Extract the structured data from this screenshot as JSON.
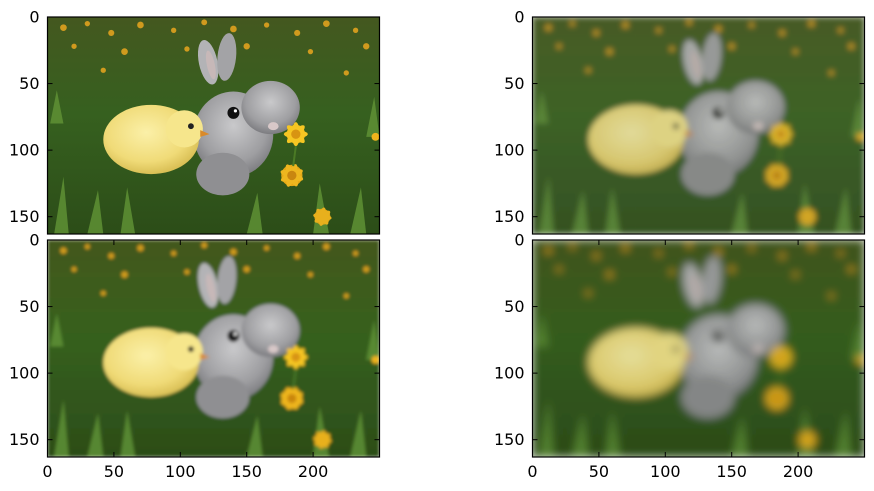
{
  "chart_data": [
    {
      "type": "image",
      "position": "top-left",
      "image_subject": "yellow chick and grey rabbit in grass with yellow dandelions",
      "xlim": [
        0,
        250
      ],
      "ylim": [
        163,
        0
      ],
      "xticks": [],
      "yticks": [
        0,
        50,
        100,
        150
      ],
      "ytick_labels": [
        "0",
        "50",
        "100",
        "150"
      ]
    },
    {
      "type": "image",
      "position": "top-right",
      "image_subject": "yellow chick and grey rabbit in grass with yellow dandelions, smoothed",
      "xlim": [
        0,
        250
      ],
      "ylim": [
        163,
        0
      ],
      "xticks": [],
      "yticks": [
        0,
        50,
        100,
        150
      ],
      "ytick_labels": [
        "0",
        "50",
        "100",
        "150"
      ]
    },
    {
      "type": "image",
      "position": "bottom-left",
      "image_subject": "yellow chick and grey rabbit in grass with yellow dandelions, smoothed",
      "xlim": [
        0,
        250
      ],
      "ylim": [
        163,
        0
      ],
      "xticks": [
        0,
        50,
        100,
        150,
        200
      ],
      "xtick_labels": [
        "0",
        "50",
        "100",
        "150",
        "200"
      ],
      "yticks": [
        0,
        50,
        100,
        150
      ],
      "ytick_labels": [
        "0",
        "50",
        "100",
        "150"
      ]
    },
    {
      "type": "image",
      "position": "bottom-right",
      "image_subject": "yellow chick and grey rabbit in grass with yellow dandelions, strongly smoothed",
      "xlim": [
        0,
        250
      ],
      "ylim": [
        163,
        0
      ],
      "xticks": [
        0,
        50,
        100,
        150,
        200
      ],
      "xtick_labels": [
        "0",
        "50",
        "100",
        "150",
        "200"
      ],
      "yticks": [
        0,
        50,
        100,
        150
      ],
      "ytick_labels": [
        "0",
        "50",
        "100",
        "150"
      ]
    }
  ],
  "colors": {
    "grass_dark": "#1f3812",
    "grass_mid": "#3b6022",
    "grass_light": "#5c8a33",
    "chick": "#f2df7e",
    "rabbit": "#a6a6a8",
    "dandelion": "#f0b41c"
  }
}
